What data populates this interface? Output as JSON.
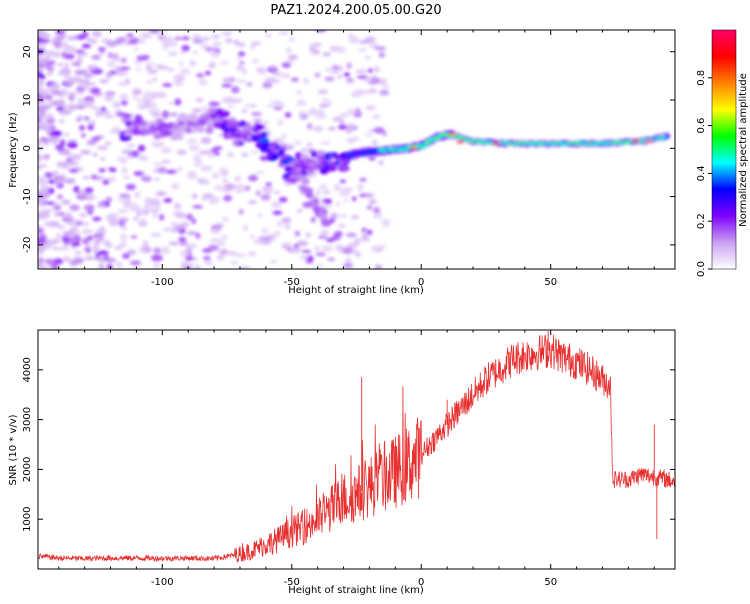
{
  "title": "PAZ1.2024.200.05.00.G20",
  "chart_data": [
    {
      "type": "heatmap",
      "xlabel": "Height of straight line (km)",
      "ylabel": "Frequency (Hz)",
      "xlim": [
        -148,
        98
      ],
      "ylim": [
        -25,
        24.5
      ],
      "x_ticks": [
        -100,
        -50,
        0,
        50
      ],
      "y_ticks": [
        -20,
        -10,
        0,
        10,
        20
      ],
      "colorbar": {
        "label": "Normalized spectral amplitude",
        "range": [
          0,
          1
        ],
        "ticks": [
          0.0,
          0.2,
          0.4,
          0.6,
          0.8
        ],
        "colormap": [
          "#ffffff",
          "#c9a0f2",
          "#7f00ff",
          "#0000ff",
          "#00ffff",
          "#00ff00",
          "#ffff00",
          "#ff8000",
          "#ff0000",
          "#ff0066"
        ]
      },
      "ridge": [
        {
          "x": -115,
          "freq": 4.5,
          "amp": 0.2
        },
        {
          "x": -105,
          "freq": 4.0,
          "amp": 0.15
        },
        {
          "x": -95,
          "freq": 4.5,
          "amp": 0.15
        },
        {
          "x": -85,
          "freq": 6.5,
          "amp": 0.12
        },
        {
          "x": -75,
          "freq": 5.0,
          "amp": 0.25
        },
        {
          "x": -65,
          "freq": 3.0,
          "amp": 0.18
        },
        {
          "x": -60,
          "freq": 1.0,
          "amp": 0.3
        },
        {
          "x": -55,
          "freq": -1.5,
          "amp": 0.25
        },
        {
          "x": -50,
          "freq": -4.0,
          "amp": 0.3
        },
        {
          "x": -45,
          "freq": -3.5,
          "amp": 0.2
        },
        {
          "x": -40,
          "freq": -2.5,
          "amp": 0.2
        },
        {
          "x": -35,
          "freq": -3.5,
          "amp": 0.3
        },
        {
          "x": -30,
          "freq": -2.0,
          "amp": 0.25
        },
        {
          "x": -25,
          "freq": -1.0,
          "amp": 0.3
        },
        {
          "x": -15,
          "freq": -0.5,
          "amp": 0.4
        },
        {
          "x": -5,
          "freq": 0.0,
          "amp": 0.45
        },
        {
          "x": 0,
          "freq": 0.5,
          "amp": 0.55
        },
        {
          "x": 5,
          "freq": 2.0,
          "amp": 0.5
        },
        {
          "x": 10,
          "freq": 3.0,
          "amp": 0.6
        },
        {
          "x": 20,
          "freq": 1.5,
          "amp": 0.5
        },
        {
          "x": 30,
          "freq": 1.0,
          "amp": 0.55
        },
        {
          "x": 50,
          "freq": 1.0,
          "amp": 0.5
        },
        {
          "x": 70,
          "freq": 1.0,
          "amp": 0.5
        },
        {
          "x": 85,
          "freq": 1.5,
          "amp": 0.55
        },
        {
          "x": 95,
          "freq": 2.5,
          "amp": 0.4
        }
      ]
    },
    {
      "type": "line",
      "xlabel": "Height of straight line (km)",
      "ylabel": "SNR (10 * v/v)",
      "xlim": [
        -148,
        98
      ],
      "ylim": [
        0,
        4800
      ],
      "x_ticks": [
        -100,
        -50,
        0,
        50
      ],
      "y_ticks": [
        1000,
        2000,
        3000,
        4000
      ],
      "color": "#e83030",
      "series": [
        {
          "x": [
            -148,
            -140,
            -130,
            -120,
            -110,
            -100,
            -90,
            -80,
            -72,
            -68,
            -64,
            -60,
            -55,
            -50,
            -45,
            -40,
            -35,
            -30,
            -25,
            -20,
            -15,
            -10,
            -5,
            0,
            5,
            10,
            15,
            20,
            25,
            30,
            35,
            40,
            45,
            50,
            55,
            60,
            65,
            70,
            73,
            74,
            80,
            85,
            90,
            95,
            98
          ],
          "y": [
            260,
            220,
            210,
            220,
            220,
            215,
            220,
            210,
            280,
            330,
            400,
            500,
            600,
            750,
            850,
            1000,
            1200,
            1400,
            1500,
            1650,
            1800,
            1950,
            2100,
            2300,
            2600,
            2900,
            3200,
            3500,
            3800,
            4000,
            4200,
            4300,
            4350,
            4400,
            4250,
            4150,
            4000,
            3800,
            3700,
            1800,
            1800,
            1900,
            1850,
            1800,
            1750
          ]
        }
      ],
      "spikes": [
        {
          "x": -23,
          "y": 3850
        },
        {
          "x": -69,
          "y": 520
        },
        {
          "x": 90,
          "y": 2900
        },
        {
          "x": 91,
          "y": 600
        },
        {
          "x": 49,
          "y": 4780
        },
        {
          "x": 10,
          "y": 3400
        }
      ]
    }
  ]
}
